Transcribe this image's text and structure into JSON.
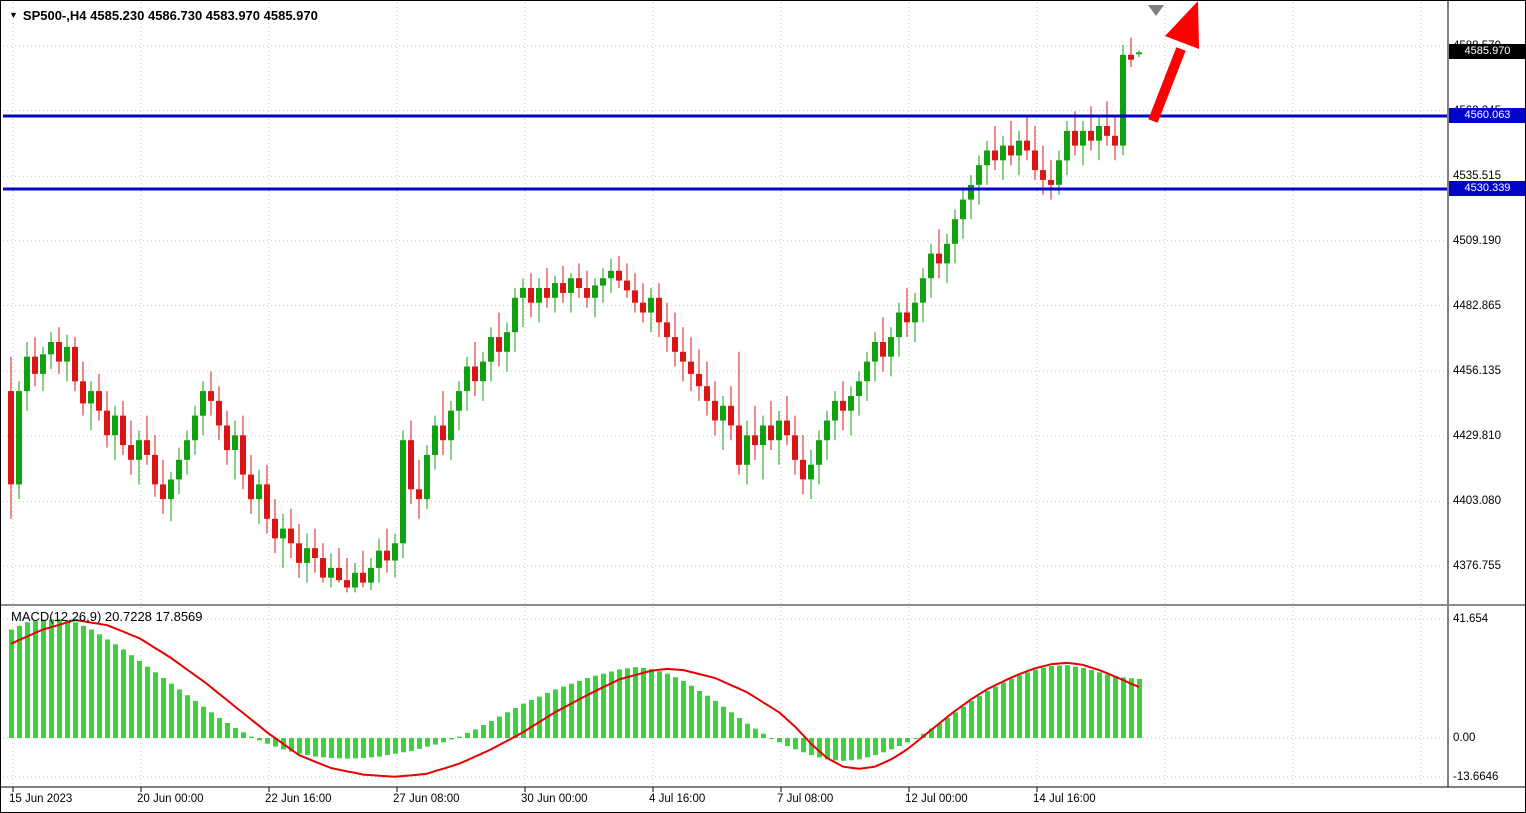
{
  "symbol_info": {
    "text": "SP500-,H4  4585.230 4586.730 4583.970 4585.970"
  },
  "icons": {
    "symbol_triangle": "▼",
    "shift_marker": "chart-shift-triangle-down",
    "trend_arrow": "red-arrow-up-right"
  },
  "price_tags": {
    "current": "4585.970",
    "resistance": "4560.063",
    "support": "4530.339"
  },
  "macd": {
    "label": "MACD(12,26,9) 20.7228 17.8569",
    "axis_labels": [
      "41.654",
      "0.00",
      "-13.6646"
    ]
  },
  "price_axis_labels": [
    "4588.570",
    "4562.245",
    "4535.515",
    "4509.190",
    "4482.865",
    "4456.135",
    "4429.810",
    "4403.080",
    "4376.755"
  ],
  "time_axis_labels": [
    "15 Jun 2023",
    "20 Jun 00:00",
    "22 Jun 16:00",
    "27 Jun 08:00",
    "30 Jun 00:00",
    "4 Jul 16:00",
    "7 Jul 08:00",
    "12 Jul 00:00",
    "14 Jul 16:00"
  ],
  "chart_data": {
    "type": "candlestick",
    "title": "SP500-,H4",
    "symbol": "SP500-",
    "timeframe": "H4",
    "bar_interval_hours": 4,
    "tick_spacing_bars": 16,
    "ohlc_format": [
      "open",
      "high",
      "low",
      "close"
    ],
    "last_bar": {
      "open": 4585.23,
      "high": 4586.73,
      "low": 4583.97,
      "close": 4585.97
    },
    "price_axis_ticks": [
      4588.57,
      4562.245,
      4535.515,
      4509.19,
      4482.865,
      4456.135,
      4429.81,
      4403.08,
      4376.755
    ],
    "horizontal_levels": [
      4560.063,
      4530.339
    ],
    "annotations": [
      {
        "type": "arrow",
        "direction": "up-right",
        "color": "#ff0000"
      },
      {
        "type": "shift-marker",
        "color": "#808080"
      }
    ],
    "candles": [
      [
        4448,
        4462,
        4396,
        4410
      ],
      [
        4410,
        4452,
        4404,
        4448
      ],
      [
        4448,
        4468,
        4440,
        4462
      ],
      [
        4462,
        4470,
        4450,
        4455
      ],
      [
        4455,
        4466,
        4448,
        4463
      ],
      [
        4463,
        4472,
        4457,
        4468
      ],
      [
        4468,
        4474,
        4455,
        4460
      ],
      [
        4460,
        4471,
        4452,
        4466
      ],
      [
        4466,
        4470,
        4448,
        4452
      ],
      [
        4452,
        4460,
        4438,
        4443
      ],
      [
        4443,
        4452,
        4432,
        4448
      ],
      [
        4448,
        4455,
        4436,
        4440
      ],
      [
        4440,
        4448,
        4425,
        4430
      ],
      [
        4430,
        4442,
        4420,
        4438
      ],
      [
        4438,
        4444,
        4422,
        4426
      ],
      [
        4426,
        4436,
        4414,
        4420
      ],
      [
        4420,
        4432,
        4410,
        4428
      ],
      [
        4428,
        4438,
        4418,
        4422
      ],
      [
        4422,
        4430,
        4405,
        4410
      ],
      [
        4410,
        4420,
        4398,
        4404
      ],
      [
        4404,
        4415,
        4395,
        4412
      ],
      [
        4412,
        4425,
        4406,
        4420
      ],
      [
        4420,
        4432,
        4414,
        4428
      ],
      [
        4428,
        4442,
        4422,
        4438
      ],
      [
        4438,
        4452,
        4430,
        4448
      ],
      [
        4448,
        4456,
        4438,
        4444
      ],
      [
        4444,
        4450,
        4428,
        4434
      ],
      [
        4434,
        4440,
        4418,
        4424
      ],
      [
        4424,
        4436,
        4412,
        4430
      ],
      [
        4430,
        4438,
        4408,
        4414
      ],
      [
        4414,
        4422,
        4398,
        4404
      ],
      [
        4404,
        4416,
        4394,
        4410
      ],
      [
        4410,
        4418,
        4390,
        4396
      ],
      [
        4396,
        4404,
        4382,
        4388
      ],
      [
        4388,
        4398,
        4376,
        4392
      ],
      [
        4392,
        4400,
        4380,
        4386
      ],
      [
        4386,
        4394,
        4372,
        4378
      ],
      [
        4378,
        4390,
        4370,
        4384
      ],
      [
        4384,
        4392,
        4374,
        4380
      ],
      [
        4380,
        4386,
        4370,
        4372
      ],
      [
        4372,
        4382,
        4368,
        4376
      ],
      [
        4376,
        4384,
        4370,
        4371
      ],
      [
        4371,
        4380,
        4366,
        4368
      ],
      [
        4368,
        4378,
        4366,
        4374
      ],
      [
        4374,
        4383,
        4368,
        4370
      ],
      [
        4370,
        4380,
        4367,
        4376
      ],
      [
        4376,
        4388,
        4370,
        4383
      ],
      [
        4383,
        4392,
        4374,
        4379
      ],
      [
        4379,
        4390,
        4372,
        4386
      ],
      [
        4386,
        4432,
        4380,
        4428
      ],
      [
        4428,
        4436,
        4402,
        4408
      ],
      [
        4408,
        4420,
        4396,
        4404
      ],
      [
        4404,
        4426,
        4400,
        4422
      ],
      [
        4422,
        4438,
        4416,
        4434
      ],
      [
        4434,
        4448,
        4422,
        4428
      ],
      [
        4428,
        4444,
        4420,
        4440
      ],
      [
        4440,
        4452,
        4432,
        4448
      ],
      [
        4448,
        4462,
        4440,
        4458
      ],
      [
        4458,
        4468,
        4446,
        4452
      ],
      [
        4452,
        4464,
        4444,
        4460
      ],
      [
        4460,
        4474,
        4452,
        4470
      ],
      [
        4470,
        4480,
        4458,
        4464
      ],
      [
        4464,
        4476,
        4456,
        4472
      ],
      [
        4472,
        4490,
        4464,
        4486
      ],
      [
        4486,
        4494,
        4474,
        4490
      ],
      [
        4490,
        4496,
        4478,
        4484
      ],
      [
        4484,
        4494,
        4476,
        4490
      ],
      [
        4490,
        4498,
        4482,
        4486
      ],
      [
        4486,
        4495,
        4480,
        4492
      ],
      [
        4492,
        4499,
        4484,
        4488
      ],
      [
        4488,
        4496,
        4480,
        4494
      ],
      [
        4494,
        4500,
        4486,
        4490
      ],
      [
        4490,
        4497,
        4482,
        4486
      ],
      [
        4486,
        4494,
        4478,
        4491
      ],
      [
        4491,
        4498,
        4484,
        4494
      ],
      [
        4494,
        4502,
        4488,
        4497
      ],
      [
        4497,
        4503,
        4490,
        4493
      ],
      [
        4493,
        4500,
        4486,
        4489
      ],
      [
        4489,
        4496,
        4480,
        4484
      ],
      [
        4484,
        4492,
        4476,
        4480
      ],
      [
        4480,
        4490,
        4472,
        4486
      ],
      [
        4486,
        4492,
        4470,
        4476
      ],
      [
        4476,
        4484,
        4464,
        4470
      ],
      [
        4470,
        4480,
        4458,
        4464
      ],
      [
        4464,
        4474,
        4452,
        4460
      ],
      [
        4460,
        4470,
        4448,
        4455
      ],
      [
        4455,
        4465,
        4444,
        4450
      ],
      [
        4450,
        4460,
        4438,
        4444
      ],
      [
        4444,
        4452,
        4430,
        4436
      ],
      [
        4436,
        4446,
        4424,
        4442
      ],
      [
        4442,
        4450,
        4428,
        4434
      ],
      [
        4434,
        4464,
        4414,
        4418
      ],
      [
        4418,
        4436,
        4410,
        4430
      ],
      [
        4430,
        4442,
        4420,
        4426
      ],
      [
        4426,
        4438,
        4412,
        4434
      ],
      [
        4434,
        4444,
        4424,
        4428
      ],
      [
        4428,
        4440,
        4418,
        4436
      ],
      [
        4436,
        4446,
        4426,
        4430
      ],
      [
        4430,
        4438,
        4414,
        4420
      ],
      [
        4420,
        4430,
        4406,
        4412
      ],
      [
        4412,
        4424,
        4404,
        4418
      ],
      [
        4418,
        4432,
        4410,
        4428
      ],
      [
        4428,
        4440,
        4420,
        4436
      ],
      [
        4436,
        4448,
        4428,
        4444
      ],
      [
        4444,
        4452,
        4432,
        4440
      ],
      [
        4440,
        4450,
        4430,
        4446
      ],
      [
        4446,
        4456,
        4438,
        4452
      ],
      [
        4452,
        4464,
        4444,
        4460
      ],
      [
        4460,
        4472,
        4452,
        4468
      ],
      [
        4468,
        4478,
        4456,
        4462
      ],
      [
        4462,
        4474,
        4454,
        4470
      ],
      [
        4470,
        4484,
        4462,
        4480
      ],
      [
        4480,
        4490,
        4470,
        4476
      ],
      [
        4476,
        4488,
        4468,
        4484
      ],
      [
        4484,
        4498,
        4476,
        4494
      ],
      [
        4494,
        4508,
        4486,
        4504
      ],
      [
        4504,
        4514,
        4494,
        4500
      ],
      [
        4500,
        4512,
        4492,
        4508
      ],
      [
        4508,
        4522,
        4500,
        4518
      ],
      [
        4518,
        4530,
        4510,
        4526
      ],
      [
        4526,
        4536,
        4518,
        4532
      ],
      [
        4532,
        4544,
        4524,
        4540
      ],
      [
        4540,
        4550,
        4532,
        4546
      ],
      [
        4546,
        4556,
        4538,
        4542
      ],
      [
        4542,
        4552,
        4534,
        4548
      ],
      [
        4548,
        4558,
        4540,
        4544
      ],
      [
        4544,
        4554,
        4536,
        4550
      ],
      [
        4550,
        4560,
        4542,
        4546
      ],
      [
        4546,
        4556,
        4534,
        4538
      ],
      [
        4538,
        4548,
        4528,
        4534
      ],
      [
        4534,
        4542,
        4526,
        4532
      ],
      [
        4532,
        4546,
        4528,
        4542
      ],
      [
        4542,
        4558,
        4536,
        4554
      ],
      [
        4554,
        4562,
        4544,
        4548
      ],
      [
        4548,
        4558,
        4540,
        4554
      ],
      [
        4554,
        4564,
        4546,
        4550
      ],
      [
        4550,
        4560,
        4542,
        4556
      ],
      [
        4556,
        4566,
        4548,
        4552
      ],
      [
        4552,
        4560,
        4542,
        4548
      ],
      [
        4548,
        4589,
        4544,
        4585
      ],
      [
        4585,
        4592,
        4580,
        4583
      ],
      [
        4585.23,
        4586.73,
        4583.97,
        4585.97
      ]
    ],
    "indicator": {
      "name": "MACD",
      "params": [
        12,
        26,
        9
      ],
      "current_macd": 20.7228,
      "current_signal": 17.8569,
      "axis_ticks": [
        41.654,
        0,
        -13.6646
      ],
      "histogram": [
        38,
        39.3,
        40.5,
        41,
        41.5,
        41.6,
        41.6,
        41.1,
        40.5,
        39.3,
        38,
        36.3,
        34.5,
        32.8,
        31,
        29,
        27,
        25,
        23,
        21,
        19,
        17,
        15,
        13,
        11,
        9,
        7,
        5.3,
        3.5,
        2,
        0.5,
        -0.8,
        -2,
        -3,
        -4,
        -4.8,
        -5.5,
        -6,
        -6.5,
        -6.8,
        -7,
        -7.1,
        -7.2,
        -7.1,
        -7,
        -6.8,
        -6.5,
        -6,
        -5.5,
        -5,
        -4.5,
        -3.8,
        -3,
        -2.3,
        -1.5,
        -0.5,
        0.5,
        1.8,
        3,
        4.5,
        6,
        7.5,
        9,
        10.5,
        12,
        13.3,
        14.5,
        15.8,
        17,
        18,
        19,
        20,
        21,
        21.8,
        22.5,
        23.3,
        24,
        24.4,
        24.8,
        24.5,
        24.2,
        23.4,
        22.5,
        21.3,
        20,
        18.3,
        16.5,
        14.8,
        13,
        11,
        9,
        7,
        5,
        3.3,
        1.5,
        0,
        -1.5,
        -2.8,
        -4,
        -5,
        -6,
        -6.8,
        -7.5,
        -7.8,
        -8,
        -7.8,
        -7.5,
        -6.8,
        -6,
        -5,
        -4,
        -2.8,
        -1.5,
        0,
        1.5,
        3.3,
        5,
        7,
        9,
        11,
        13,
        14.8,
        16.5,
        18,
        19.5,
        20.8,
        22,
        23,
        24,
        24.6,
        25.2,
        25.4,
        25.5,
        25,
        24.5,
        23.8,
        23,
        22.3,
        21.5,
        21.2,
        20.9,
        20.7
      ],
      "signal": [
        33,
        34.3,
        35.5,
        36.8,
        38,
        38.8,
        39.6,
        40.5,
        41.3,
        40.9,
        40.4,
        40,
        39.5,
        38.4,
        37.3,
        36.1,
        35,
        33.3,
        31.5,
        29.8,
        28,
        26,
        24,
        22,
        20,
        17.8,
        15.5,
        13.3,
        11,
        8.8,
        6.5,
        4.3,
        2,
        0,
        -2,
        -4,
        -6,
        -7.1,
        -8.3,
        -9.4,
        -10.5,
        -11.1,
        -11.7,
        -12.2,
        -12.8,
        -13,
        -13.2,
        -13.4,
        -13.6,
        -13.3,
        -13.1,
        -12.8,
        -12.5,
        -11.6,
        -10.8,
        -9.9,
        -9,
        -7.8,
        -6.5,
        -5.3,
        -4,
        -2.5,
        -1,
        0.5,
        2,
        3.8,
        5.5,
        7.3,
        9,
        10.5,
        12,
        13.5,
        15,
        16.4,
        17.8,
        19.1,
        20.5,
        21.3,
        22,
        22.8,
        23.5,
        23.9,
        24.2,
        24,
        23.8,
        23.1,
        22.4,
        21.7,
        21,
        19.8,
        18.5,
        17.3,
        16,
        14.3,
        12.5,
        10.8,
        9,
        6.5,
        4,
        1,
        -2,
        -4.5,
        -7,
        -8.5,
        -10,
        -10.4,
        -10.8,
        -10.4,
        -10,
        -8.8,
        -7.5,
        -5.8,
        -4,
        -1.8,
        0.5,
        2.8,
        5,
        7.3,
        9.5,
        11.5,
        13.5,
        15.3,
        17,
        18.4,
        19.8,
        21.1,
        22.3,
        23.4,
        24.4,
        25.1,
        25.8,
        26.1,
        26.3,
        26,
        25.6,
        24.7,
        23.8,
        22.7,
        21.5,
        20.3,
        19,
        17.9
      ]
    },
    "colors": {
      "up": "#10a010",
      "down": "#dc1414",
      "macd_histogram": "#3dd13d",
      "macd_signal": "#e80000",
      "level_line": "#0404c8",
      "grid": "#c6c6c6",
      "current_price_tag_bg": "#000000",
      "level_tag_bg": "#0404c8",
      "arrow": "#ff0000",
      "shift_marker": "#808080",
      "background": "#ffffff"
    }
  }
}
